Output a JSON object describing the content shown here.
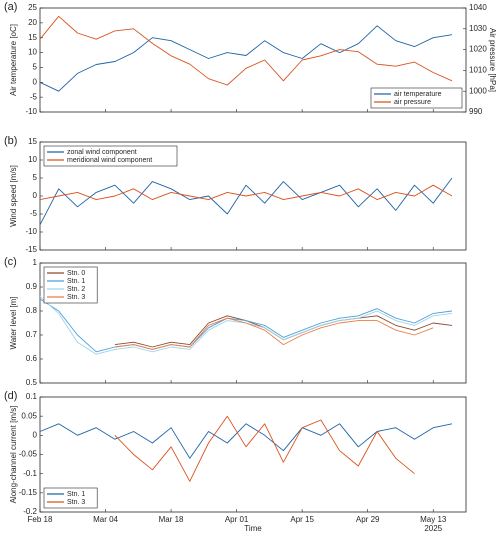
{
  "chart_data": [
    {
      "type": "line",
      "panel_label": "(a)",
      "ylabel": "Air temperature [oC]",
      "y2label": "Air pressure [hPa]",
      "x": [
        "2025-02-18",
        "2025-02-22",
        "2025-02-26",
        "2025-03-02",
        "2025-03-06",
        "2025-03-10",
        "2025-03-14",
        "2025-03-18",
        "2025-03-22",
        "2025-03-26",
        "2025-03-30",
        "2025-04-03",
        "2025-04-07",
        "2025-04-11",
        "2025-04-15",
        "2025-04-19",
        "2025-04-23",
        "2025-04-27",
        "2025-05-01",
        "2025-05-05",
        "2025-05-09",
        "2025-05-13",
        "2025-05-17"
      ],
      "xlim": [
        "2025-02-18",
        "2025-05-20"
      ],
      "ylim": [
        -10,
        25
      ],
      "yticks": [
        -10,
        -5,
        0,
        5,
        10,
        15,
        20,
        25
      ],
      "y2lim": [
        990,
        1040
      ],
      "y2ticks": [
        990,
        1000,
        1010,
        1020,
        1030,
        1040
      ],
      "legend": "lower right",
      "series": [
        {
          "name": "air temperature",
          "color": "#1f63a8",
          "values": [
            0,
            -3,
            3,
            6,
            7,
            10,
            15,
            14,
            11,
            8,
            10,
            9,
            14,
            10,
            8,
            13,
            10,
            13,
            19,
            14,
            12,
            15,
            16
          ]
        },
        {
          "name": "air pressure",
          "color": "#d9531e",
          "axis": "y2",
          "values": [
            1025,
            1036,
            1028,
            1025,
            1029,
            1030,
            1023,
            1017,
            1013,
            1006,
            1003,
            1011,
            1015,
            1005,
            1015,
            1017,
            1020,
            1019,
            1013,
            1012,
            1014,
            1009,
            1005
          ]
        }
      ]
    },
    {
      "type": "line",
      "panel_label": "(b)",
      "ylabel": "Wind speed [m/s]",
      "x": [
        "2025-02-18",
        "2025-02-22",
        "2025-02-26",
        "2025-03-02",
        "2025-03-06",
        "2025-03-10",
        "2025-03-14",
        "2025-03-18",
        "2025-03-22",
        "2025-03-26",
        "2025-03-30",
        "2025-04-03",
        "2025-04-07",
        "2025-04-11",
        "2025-04-15",
        "2025-04-19",
        "2025-04-23",
        "2025-04-27",
        "2025-05-01",
        "2025-05-05",
        "2025-05-09",
        "2025-05-13",
        "2025-05-17"
      ],
      "xlim": [
        "2025-02-18",
        "2025-05-20"
      ],
      "ylim": [
        -15,
        15
      ],
      "yticks": [
        -15,
        -10,
        -5,
        0,
        5,
        10,
        15
      ],
      "legend": "upper left",
      "series": [
        {
          "name": "zonal wind component",
          "color": "#1f63a8",
          "values": [
            -8,
            2,
            -3,
            1,
            3,
            -2,
            4,
            2,
            -1,
            0,
            -5,
            3,
            -2,
            4,
            -1,
            1,
            3,
            -3,
            2,
            -4,
            3,
            -2,
            5
          ]
        },
        {
          "name": "meridional wind component",
          "color": "#d9531e",
          "values": [
            -1,
            0,
            1,
            -1,
            0,
            2,
            -1,
            1,
            0,
            -1,
            1,
            0,
            1,
            -1,
            0,
            1,
            0,
            2,
            -1,
            1,
            0,
            3,
            0
          ]
        }
      ]
    },
    {
      "type": "line",
      "panel_label": "(c)",
      "ylabel": "Water level [m]",
      "x": [
        "2025-02-18",
        "2025-02-22",
        "2025-02-26",
        "2025-03-02",
        "2025-03-06",
        "2025-03-10",
        "2025-03-14",
        "2025-03-18",
        "2025-03-22",
        "2025-03-26",
        "2025-03-30",
        "2025-04-03",
        "2025-04-07",
        "2025-04-11",
        "2025-04-15",
        "2025-04-19",
        "2025-04-23",
        "2025-04-27",
        "2025-05-01",
        "2025-05-05",
        "2025-05-09",
        "2025-05-13",
        "2025-05-17"
      ],
      "xlim": [
        "2025-02-18",
        "2025-05-20"
      ],
      "ylim": [
        0.5,
        1
      ],
      "yticks": [
        0.5,
        0.6,
        0.7,
        0.8,
        0.9,
        1
      ],
      "legend": "upper left",
      "series": [
        {
          "name": "Stn. 0",
          "color": "#8c4a32",
          "values": [
            null,
            null,
            null,
            null,
            0.66,
            0.67,
            0.65,
            0.67,
            0.66,
            0.75,
            0.78,
            0.76,
            0.73,
            0.68,
            0.71,
            0.74,
            0.76,
            0.77,
            0.78,
            0.74,
            0.72,
            0.75,
            0.74
          ]
        },
        {
          "name": "Stn. 1",
          "color": "#4d9fd6",
          "values": [
            0.85,
            0.8,
            0.7,
            0.63,
            0.65,
            0.66,
            0.64,
            0.66,
            0.65,
            0.73,
            0.77,
            0.76,
            0.74,
            0.69,
            0.72,
            0.75,
            0.77,
            0.78,
            0.81,
            0.77,
            0.75,
            0.79,
            0.8
          ]
        },
        {
          "name": "Stn. 2",
          "color": "#9fd3ec",
          "values": [
            0.86,
            0.79,
            0.67,
            0.62,
            0.64,
            0.65,
            0.63,
            0.65,
            0.64,
            0.72,
            0.76,
            0.75,
            0.73,
            0.68,
            0.71,
            0.74,
            0.76,
            0.77,
            0.8,
            0.76,
            0.74,
            0.78,
            0.79
          ]
        },
        {
          "name": "Stn. 3",
          "color": "#ec7c43",
          "values": [
            null,
            null,
            null,
            null,
            0.65,
            0.66,
            0.64,
            0.66,
            0.65,
            0.74,
            0.77,
            0.75,
            0.72,
            0.66,
            0.7,
            0.73,
            0.75,
            0.76,
            0.76,
            0.72,
            0.7,
            0.73,
            null
          ]
        }
      ]
    },
    {
      "type": "line",
      "panel_label": "(d)",
      "ylabel": "Along-channel current [m/s]",
      "xlabel": "Time",
      "x_year_label": "2025",
      "x": [
        "2025-02-18",
        "2025-02-22",
        "2025-02-26",
        "2025-03-02",
        "2025-03-06",
        "2025-03-10",
        "2025-03-14",
        "2025-03-18",
        "2025-03-22",
        "2025-03-26",
        "2025-03-30",
        "2025-04-03",
        "2025-04-07",
        "2025-04-11",
        "2025-04-15",
        "2025-04-19",
        "2025-04-23",
        "2025-04-27",
        "2025-05-01",
        "2025-05-05",
        "2025-05-09",
        "2025-05-13",
        "2025-05-17"
      ],
      "xlim": [
        "2025-02-18",
        "2025-05-20"
      ],
      "xticks": [
        {
          "value": "2025-02-18",
          "label": "Feb 18"
        },
        {
          "value": "2025-03-04",
          "label": "Mar 04"
        },
        {
          "value": "2025-03-18",
          "label": "Mar 18"
        },
        {
          "value": "2025-04-01",
          "label": "Apr 01"
        },
        {
          "value": "2025-04-15",
          "label": "Apr 15"
        },
        {
          "value": "2025-04-29",
          "label": "Apr 29"
        },
        {
          "value": "2025-05-13",
          "label": "May 13"
        }
      ],
      "ylim": [
        -0.2,
        0.1
      ],
      "yticks": [
        -0.2,
        -0.15,
        -0.1,
        -0.05,
        0,
        0.05,
        0.1
      ],
      "legend": "lower left",
      "series": [
        {
          "name": "Stn. 1",
          "color": "#1f63a8",
          "values": [
            0.01,
            0.03,
            0,
            0.02,
            -0.01,
            0.01,
            -0.02,
            0.02,
            -0.06,
            0.01,
            -0.02,
            0.03,
            0,
            -0.04,
            0.02,
            0,
            0.03,
            -0.03,
            0.01,
            0.02,
            -0.01,
            0.02,
            0.03
          ]
        },
        {
          "name": "Stn. 3",
          "color": "#d9531e",
          "values": [
            null,
            null,
            null,
            null,
            0,
            -0.05,
            -0.09,
            -0.03,
            -0.12,
            -0.02,
            0.05,
            -0.03,
            0.03,
            -0.07,
            0.02,
            0.04,
            -0.04,
            -0.08,
            0.01,
            -0.06,
            -0.1,
            null,
            null
          ]
        }
      ]
    }
  ]
}
